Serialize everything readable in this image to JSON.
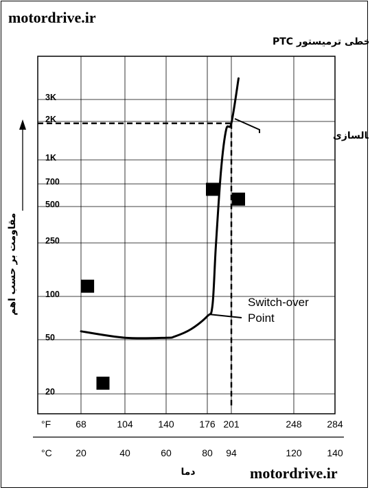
{
  "brand": {
    "top_text": "motordrive.ir",
    "bottom_text": "motordrive.ir"
  },
  "chart_data": {
    "type": "line",
    "title": "منحنی غیر خطی ترمیستور PTC",
    "ylabel": "مقاومت بر حسب اهم",
    "xlabel": "دما",
    "y_ticks": [
      "3K",
      "2K",
      "1K",
      "700",
      "500",
      "250",
      "100",
      "50",
      "20"
    ],
    "x_ticks_f": [
      "°F",
      "68",
      "104",
      "140",
      "176",
      "201",
      "248",
      "284"
    ],
    "x_ticks_c": [
      "°C",
      "20",
      "40",
      "60",
      "80",
      "94",
      "120",
      "140"
    ],
    "series": [
      {
        "x": [
          20,
          40,
          60,
          64,
          72,
          80,
          83,
          85,
          88,
          91,
          94,
          97
        ],
        "y": [
          58,
          52,
          52,
          53,
          60,
          75,
          90,
          250,
          900,
          1800,
          2000,
          4300
        ]
      }
    ],
    "markers": [
      {
        "x": 23,
        "y": 125
      },
      {
        "x": 30,
        "y": 24
      },
      {
        "x": 83,
        "y": 650
      },
      {
        "x": 97,
        "y": 550
      }
    ],
    "switch_point": {
      "x_f": 201,
      "x_c": 94,
      "y": 2000
    },
    "annotations": {
      "activation_point": "نقطه فعالسازی",
      "switch_over_line1": "Switch-over",
      "switch_over_line2": "Point"
    },
    "grid": true
  },
  "colors": {
    "ink": "#000000",
    "background": "#ffffff"
  }
}
